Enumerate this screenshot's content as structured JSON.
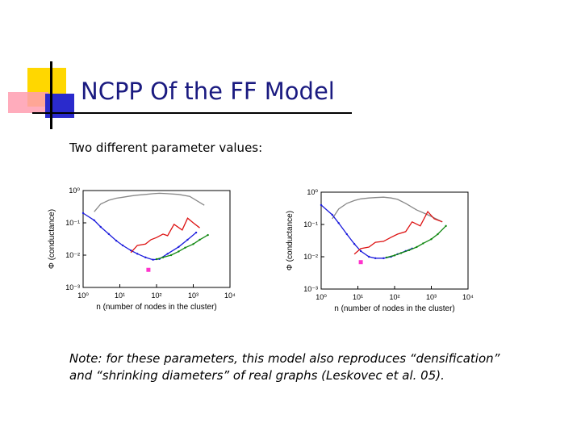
{
  "slide": {
    "title": "NCPP Of the FF Model",
    "subtitle": "Two different parameter values:",
    "note_line1": "Note: for these parameters, this model also reproduces “densification”",
    "note_line2": "and “shrinking diameters” of real graphs (Leskovec et al. 05)."
  },
  "colors": {
    "title": "#1a1a80",
    "deco_yellow": "#ffd700",
    "deco_blue": "#2a2acc",
    "deco_pink": "#ff9db0",
    "series_blue": "#1a1adc",
    "series_red": "#dd1111",
    "series_green": "#118811",
    "series_gray": "#888888",
    "min_marker": "#ff33cc"
  },
  "chart_data": [
    {
      "type": "line",
      "xscale": "log",
      "yscale": "log",
      "xlabel": "n (number of nodes in the cluster)",
      "ylabel": "Φ (conductance)",
      "xlim": [
        1,
        10000
      ],
      "ylim": [
        0.001,
        1
      ],
      "x_ticks": [
        "10⁰",
        "10¹",
        "10²",
        "10³",
        "10⁴"
      ],
      "y_ticks": [
        "10⁰",
        "10⁻¹",
        "10⁻²",
        "10⁻³"
      ],
      "series": [
        {
          "color": "#888888",
          "x": [
            2,
            3,
            5,
            8,
            12,
            20,
            30,
            50,
            80,
            120,
            200,
            400,
            800,
            2000
          ],
          "y": [
            0.22,
            0.38,
            0.5,
            0.58,
            0.62,
            0.68,
            0.72,
            0.76,
            0.8,
            0.82,
            0.8,
            0.76,
            0.66,
            0.35
          ]
        },
        {
          "color": "#1a1adc",
          "x": [
            1,
            2,
            3,
            5,
            8,
            12,
            20,
            30,
            50,
            80,
            120,
            200,
            400,
            700,
            1200
          ],
          "y": [
            0.2,
            0.12,
            0.075,
            0.045,
            0.028,
            0.02,
            0.014,
            0.011,
            0.0085,
            0.0072,
            0.0076,
            0.011,
            0.018,
            0.03,
            0.05
          ]
        },
        {
          "color": "#dd1111",
          "x": [
            20,
            30,
            50,
            70,
            100,
            150,
            200,
            300,
            500,
            700,
            1000,
            1500
          ],
          "y": [
            0.012,
            0.02,
            0.022,
            0.03,
            0.035,
            0.045,
            0.04,
            0.09,
            0.06,
            0.14,
            0.1,
            0.07
          ]
        },
        {
          "color": "#118811",
          "x": [
            100,
            150,
            250,
            400,
            600,
            1000,
            1500,
            2500
          ],
          "y": [
            0.0075,
            0.0085,
            0.01,
            0.013,
            0.017,
            0.022,
            0.03,
            0.042
          ]
        }
      ],
      "min_point": {
        "x": 60,
        "y": 0.0035
      }
    },
    {
      "type": "line",
      "xscale": "log",
      "yscale": "log",
      "xlabel": "n (number of nodes in the cluster)",
      "ylabel": "Φ (conductance)",
      "xlim": [
        1,
        10000
      ],
      "ylim": [
        0.001,
        1
      ],
      "x_ticks": [
        "10⁰",
        "10¹",
        "10²",
        "10³",
        "10⁴"
      ],
      "y_ticks": [
        "10⁰",
        "10⁻¹",
        "10⁻²",
        "10⁻³"
      ],
      "series": [
        {
          "color": "#888888",
          "x": [
            2,
            3,
            5,
            8,
            12,
            20,
            30,
            50,
            80,
            120,
            200,
            400,
            800,
            2000
          ],
          "y": [
            0.15,
            0.3,
            0.45,
            0.55,
            0.62,
            0.66,
            0.68,
            0.7,
            0.66,
            0.6,
            0.45,
            0.28,
            0.2,
            0.12
          ]
        },
        {
          "color": "#1a1adc",
          "x": [
            1,
            2,
            3,
            5,
            8,
            12,
            20,
            30,
            50,
            80,
            120,
            200,
            300
          ],
          "y": [
            0.4,
            0.2,
            0.11,
            0.05,
            0.025,
            0.015,
            0.01,
            0.009,
            0.009,
            0.01,
            0.012,
            0.015,
            0.018
          ]
        },
        {
          "color": "#dd1111",
          "x": [
            8,
            12,
            20,
            30,
            50,
            80,
            120,
            200,
            300,
            500,
            800,
            1200,
            2000
          ],
          "y": [
            0.012,
            0.018,
            0.02,
            0.028,
            0.03,
            0.04,
            0.05,
            0.06,
            0.12,
            0.09,
            0.25,
            0.15,
            0.12
          ]
        },
        {
          "color": "#118811",
          "x": [
            60,
            100,
            150,
            250,
            400,
            600,
            1000,
            1500,
            2500
          ],
          "y": [
            0.0095,
            0.011,
            0.013,
            0.016,
            0.02,
            0.026,
            0.035,
            0.05,
            0.09
          ]
        }
      ],
      "min_point": {
        "x": 12,
        "y": 0.0068
      }
    }
  ]
}
